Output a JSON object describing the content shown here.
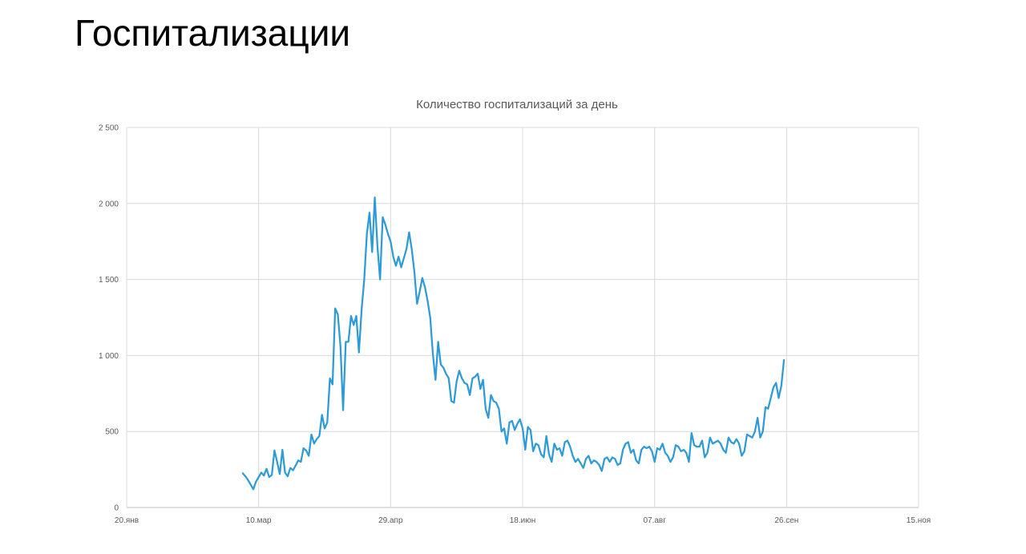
{
  "slide": {
    "title": "Госпитализации"
  },
  "chart_data": {
    "type": "line",
    "title": "Количество госпитализаций за день",
    "xlabel": "",
    "ylabel": "",
    "x_axis": {
      "type": "date",
      "range": [
        "20.янв",
        "15.ноя"
      ],
      "ticks": [
        "20.янв",
        "10.мар",
        "29.апр",
        "18.июн",
        "07.авг",
        "26.сен",
        "15.ноя"
      ]
    },
    "y_axis": {
      "range": [
        0,
        2500
      ],
      "ticks": [
        0,
        500,
        1000,
        1500,
        2000,
        2500
      ],
      "tick_labels": [
        "0",
        "500",
        "1 000",
        "1 500",
        "2 000",
        "2 500"
      ]
    },
    "grid": true,
    "legend": "none",
    "series": [
      {
        "color": "#2E9BD6",
        "x_start": "04.мар",
        "x_end": "28.сен",
        "step": "1 день",
        "values": [
          225,
          205,
          180,
          150,
          120,
          170,
          200,
          230,
          210,
          255,
          200,
          215,
          375,
          300,
          220,
          380,
          230,
          205,
          260,
          245,
          275,
          310,
          300,
          390,
          375,
          340,
          480,
          420,
          450,
          470,
          610,
          520,
          560,
          850,
          810,
          1310,
          1270,
          1060,
          640,
          1090,
          1090,
          1260,
          1200,
          1260,
          1020,
          1300,
          1500,
          1800,
          1940,
          1680,
          2040,
          1720,
          1500,
          1910,
          1860,
          1800,
          1750,
          1650,
          1590,
          1650,
          1580,
          1640,
          1700,
          1810,
          1700,
          1550,
          1340,
          1420,
          1510,
          1450,
          1360,
          1250,
          1010,
          840,
          1090,
          940,
          920,
          880,
          850,
          700,
          690,
          830,
          900,
          850,
          820,
          810,
          740,
          850,
          860,
          880,
          780,
          840,
          650,
          590,
          740,
          700,
          690,
          650,
          500,
          520,
          420,
          560,
          570,
          510,
          550,
          580,
          520,
          380,
          530,
          510,
          370,
          420,
          410,
          350,
          330,
          470,
          350,
          300,
          420,
          380,
          390,
          340,
          430,
          440,
          400,
          340,
          300,
          320,
          290,
          260,
          320,
          340,
          290,
          310,
          300,
          280,
          240,
          320,
          330,
          300,
          330,
          320,
          280,
          290,
          380,
          420,
          430,
          360,
          380,
          310,
          290,
          380,
          400,
          390,
          400,
          370,
          300,
          390,
          380,
          420,
          360,
          340,
          300,
          330,
          410,
          400,
          370,
          380,
          360,
          300,
          490,
          410,
          400,
          400,
          440,
          330,
          360,
          460,
          420,
          430,
          440,
          420,
          380,
          360,
          460,
          430,
          420,
          450,
          420,
          340,
          370,
          480,
          470,
          460,
          500,
          590,
          460,
          500,
          660,
          650,
          720,
          790,
          820,
          720,
          800,
          970
        ]
      }
    ]
  }
}
